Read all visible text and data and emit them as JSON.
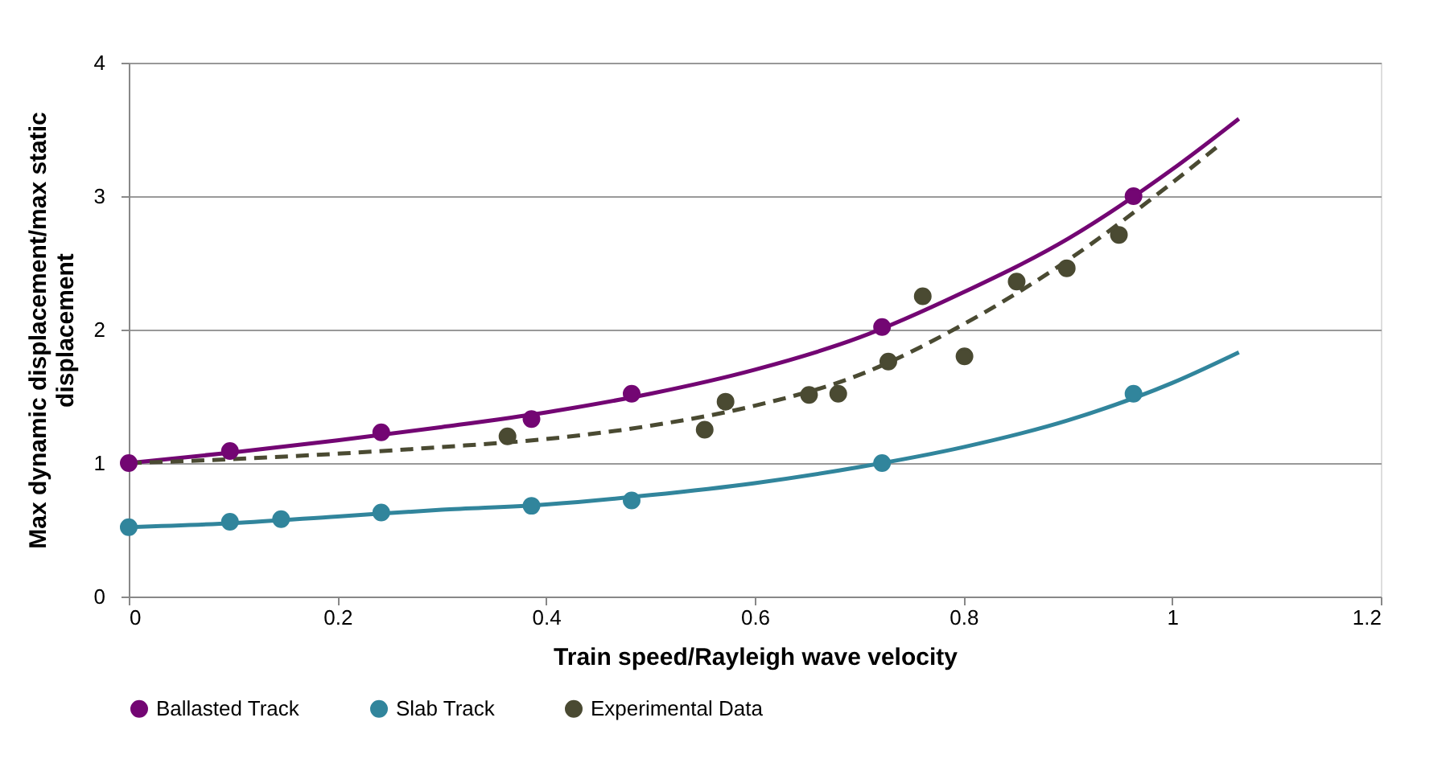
{
  "chart_data": {
    "type": "scatter",
    "xlabel": "Train speed/Rayleigh wave velocity",
    "ylabel": "Max dynamic displacement/max static displacement",
    "xlim": [
      0,
      1.2
    ],
    "xticks": [
      0,
      0.2,
      0.4,
      0.6,
      0.8,
      1,
      1.2
    ],
    "ylim": [
      0,
      4
    ],
    "yticks": [
      0,
      1,
      2,
      3,
      4
    ],
    "grid": "y",
    "legend": "bottom",
    "series": [
      {
        "type": "line",
        "color": "#730673",
        "line_style": "solid",
        "x": [
          0,
          0.1,
          0.2,
          0.3,
          0.4,
          0.5,
          0.6,
          0.7,
          0.8,
          0.9,
          1.0,
          1.064
        ],
        "values": [
          1.0,
          1.08,
          1.17,
          1.27,
          1.38,
          1.52,
          1.7,
          1.94,
          2.28,
          2.68,
          3.2,
          3.58
        ]
      },
      {
        "type": "line",
        "color": "#31859c",
        "line_style": "solid",
        "x": [
          0,
          0.1,
          0.2,
          0.3,
          0.4,
          0.5,
          0.6,
          0.7,
          0.8,
          0.9,
          1.0,
          1.064
        ],
        "values": [
          0.52,
          0.55,
          0.6,
          0.65,
          0.69,
          0.76,
          0.85,
          0.97,
          1.12,
          1.32,
          1.6,
          1.83
        ]
      },
      {
        "type": "line",
        "color": "#4a4a32",
        "line_style": "dashed",
        "x": [
          0,
          0.1,
          0.2,
          0.3,
          0.4,
          0.5,
          0.6,
          0.7,
          0.8,
          0.9,
          1.0,
          1.048
        ],
        "values": [
          1.0,
          1.03,
          1.07,
          1.12,
          1.18,
          1.28,
          1.43,
          1.66,
          2.04,
          2.52,
          3.1,
          3.4
        ]
      },
      {
        "type": "scatter",
        "name": "Ballasted Track",
        "color": "#730673",
        "marker": "circle",
        "x": [
          0,
          0.097,
          0.242,
          0.386,
          0.482,
          0.722,
          0.963
        ],
        "values": [
          1.0,
          1.09,
          1.23,
          1.33,
          1.52,
          2.02,
          3.0
        ]
      },
      {
        "type": "scatter",
        "name": "Slab Track",
        "color": "#31859c",
        "marker": "circle",
        "x": [
          0,
          0.097,
          0.146,
          0.242,
          0.386,
          0.482,
          0.722,
          0.963
        ],
        "values": [
          0.52,
          0.56,
          0.58,
          0.63,
          0.68,
          0.72,
          1.0,
          1.52
        ]
      },
      {
        "type": "scatter",
        "name": "Experimental Data",
        "color": "#4a4a32",
        "marker": "circle",
        "x": [
          0.363,
          0.552,
          0.572,
          0.652,
          0.68,
          0.728,
          0.761,
          0.801,
          0.851,
          0.899,
          0.949
        ],
        "values": [
          1.2,
          1.25,
          1.46,
          1.51,
          1.52,
          1.76,
          2.25,
          1.8,
          2.36,
          2.46,
          2.71
        ]
      }
    ]
  }
}
